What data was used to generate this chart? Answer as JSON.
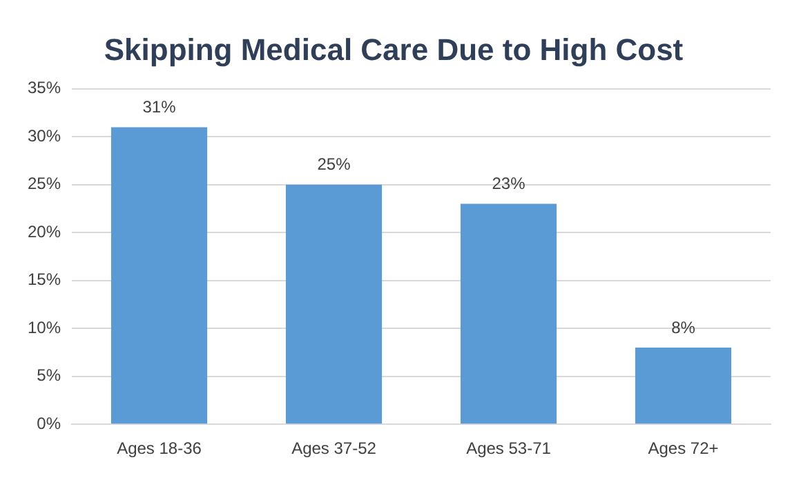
{
  "chart_data": {
    "type": "bar",
    "title": "Skipping Medical Care Due to High Cost",
    "categories": [
      "Ages 18-36",
      "Ages 37-52",
      "Ages 53-71",
      "Ages 72+"
    ],
    "values": [
      31,
      25,
      23,
      8
    ],
    "color": "#5b9bd5",
    "value_labels": [
      "31%",
      "25%",
      "23%",
      "8%"
    ],
    "ylim": [
      0,
      35
    ],
    "yticks": [
      {
        "value": 0,
        "label": "0%"
      },
      {
        "value": 5,
        "label": "5%"
      },
      {
        "value": 10,
        "label": "10%"
      },
      {
        "value": 15,
        "label": "15%"
      },
      {
        "value": 20,
        "label": "20%"
      },
      {
        "value": 25,
        "label": "25%"
      },
      {
        "value": 30,
        "label": "30%"
      },
      {
        "value": 35,
        "label": "35%"
      }
    ],
    "grid": "y",
    "legend": false
  }
}
